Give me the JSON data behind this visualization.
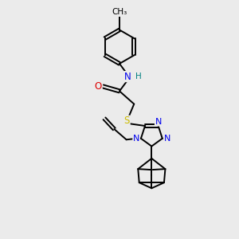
{
  "bg_color": "#ebebeb",
  "atom_colors": {
    "C": "#000000",
    "N": "#0000ee",
    "O": "#dd0000",
    "S": "#ccbb00",
    "H": "#008080"
  },
  "bond_color": "#000000",
  "lw": 1.4,
  "fs": 8.5
}
